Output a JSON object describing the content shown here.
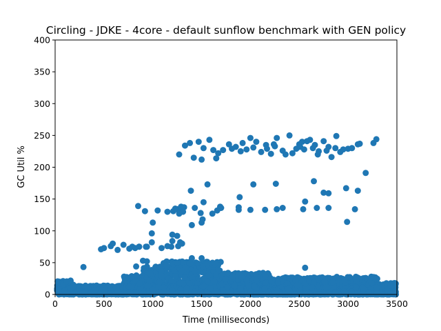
{
  "chart_data": {
    "type": "scatter",
    "title": "Circling - JDKE - 4core -  default sunflow benchmark with GEN policy",
    "xlabel": "Time (milliseconds)",
    "ylabel": "GC Util %",
    "xlim": [
      0,
      3500
    ],
    "ylim": [
      0,
      400
    ],
    "xticks": [
      "0",
      "500",
      "1000",
      "1500",
      "2000",
      "2500",
      "3000",
      "3500"
    ],
    "yticks": [
      "0",
      "50",
      "100",
      "150",
      "200",
      "250",
      "300",
      "350",
      "400"
    ],
    "grid": false,
    "legend": "none",
    "series": [
      {
        "color": "#1f77b4",
        "x": [
          1270,
          1330,
          1380,
          1420,
          1470,
          1500,
          1520,
          1580,
          1620,
          1650,
          1670,
          1720,
          1780,
          1810,
          1850,
          1900,
          1920,
          1960,
          2000,
          2030,
          2060,
          2110,
          2160,
          2170,
          2210,
          2240,
          2250,
          2270,
          2330,
          2360,
          2400,
          2430,
          2470,
          2500,
          2510,
          2530,
          2550,
          2580,
          2610,
          2640,
          2660,
          2690,
          2700,
          2750,
          2780,
          2800,
          2830,
          2870,
          2880,
          2920,
          2950,
          3000,
          3040,
          3100,
          3120,
          3260,
          3290,
          1280,
          1310,
          1510,
          1690,
          2270,
          2540,
          2680,
          2800,
          3070,
          1390,
          1520,
          1690,
          1890,
          2000,
          2260,
          2650,
          2750,
          2800,
          2980,
          3100,
          3180,
          1560,
          1880,
          2030,
          2150,
          2330,
          2560,
          850,
          920,
          1050,
          1150,
          1210,
          1250,
          1290,
          1320,
          1430,
          1490,
          1500,
          1610,
          1660,
          1700,
          1880,
          930,
          1000,
          1200,
          1230,
          1270,
          1400,
          2990,
          860,
          990,
          1190,
          1250,
          1280,
          470,
          500,
          570,
          590,
          640,
          700,
          760,
          790,
          820,
          860,
          940,
          990,
          1090,
          1150,
          1200,
          1260,
          1300,
          290,
          830,
          900,
          940,
          1140,
          1250,
          2560,
          1400,
          1500
        ],
        "y": [
          220,
          234,
          238,
          215,
          240,
          212,
          230,
          243,
          227,
          214,
          222,
          227,
          236,
          229,
          232,
          225,
          238,
          228,
          246,
          231,
          240,
          224,
          235,
          229,
          221,
          236,
          233,
          246,
          226,
          220,
          250,
          222,
          229,
          236,
          232,
          240,
          228,
          241,
          243,
          230,
          235,
          220,
          225,
          241,
          226,
          232,
          216,
          230,
          249,
          224,
          228,
          229,
          230,
          236,
          237,
          238,
          244,
          135,
          130,
          118,
          136,
          134,
          134,
          136,
          136,
          134,
          163,
          145,
          138,
          153,
          133,
          174,
          178,
          160,
          159,
          167,
          163,
          191,
          173,
          133,
          173,
          133,
          136,
          146,
          139,
          131,
          132,
          130,
          131,
          134,
          138,
          137,
          136,
          128,
          113,
          127,
          132,
          136,
          137,
          75,
          113,
          94,
          135,
          127,
          109,
          114,
          75,
          96,
          75,
          92,
          82,
          71,
          73,
          76,
          80,
          70,
          78,
          72,
          75,
          73,
          75,
          75,
          82,
          73,
          76,
          84,
          76,
          80,
          43,
          44,
          53,
          52,
          46,
          50,
          42,
          57,
          57
        ]
      }
    ]
  }
}
